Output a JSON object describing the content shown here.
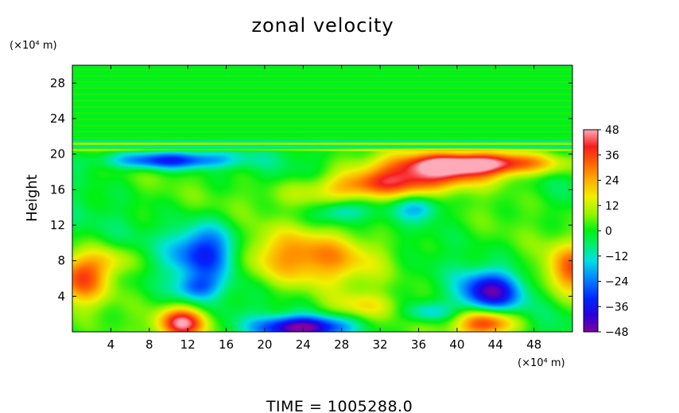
{
  "chart_data": {
    "type": "heatmap",
    "title": "zonal velocity",
    "ylabel": "Height",
    "y_unit": "(×10⁴ m)",
    "x_unit": "(×10⁴ m)",
    "xlim": [
      0,
      52
    ],
    "ylim": [
      0,
      30
    ],
    "xticks": [
      "4",
      "8",
      "12",
      "16",
      "20",
      "24",
      "28",
      "32",
      "36",
      "40",
      "44",
      "48"
    ],
    "yticks": [
      "4",
      "8",
      "12",
      "16",
      "20",
      "24",
      "28"
    ],
    "xtick_values": [
      4,
      8,
      12,
      16,
      20,
      24,
      28,
      32,
      36,
      40,
      44,
      48
    ],
    "ytick_values": [
      4,
      8,
      12,
      16,
      20,
      24,
      28
    ],
    "colorbar": {
      "labels": [
        "48",
        "36",
        "24",
        "12",
        "0",
        "−12",
        "−24",
        "−36",
        "−48"
      ],
      "values": [
        48,
        36,
        24,
        12,
        0,
        -12,
        -24,
        -36,
        -48
      ],
      "range": [
        -48,
        48
      ]
    },
    "features": [
      {
        "x": 34,
        "y": 17,
        "value": 38
      },
      {
        "x": 42,
        "y": 19,
        "value": 42
      },
      {
        "x": 25,
        "y": 8.5,
        "value": 26
      },
      {
        "x": 11.5,
        "y": 1,
        "value": 45
      },
      {
        "x": 43,
        "y": 1,
        "value": 40
      },
      {
        "x": 24,
        "y": 0.5,
        "value": -48
      },
      {
        "x": 10,
        "y": 19.3,
        "value": -36
      },
      {
        "x": 14,
        "y": 9,
        "value": -36
      },
      {
        "x": 43.5,
        "y": 4.5,
        "value": -40
      },
      {
        "x": 1,
        "y": 6,
        "value": 30
      },
      {
        "x": 52,
        "y": 7,
        "value": 30
      }
    ]
  },
  "footer": {
    "time_text": "TIME  =  1005288.0"
  }
}
